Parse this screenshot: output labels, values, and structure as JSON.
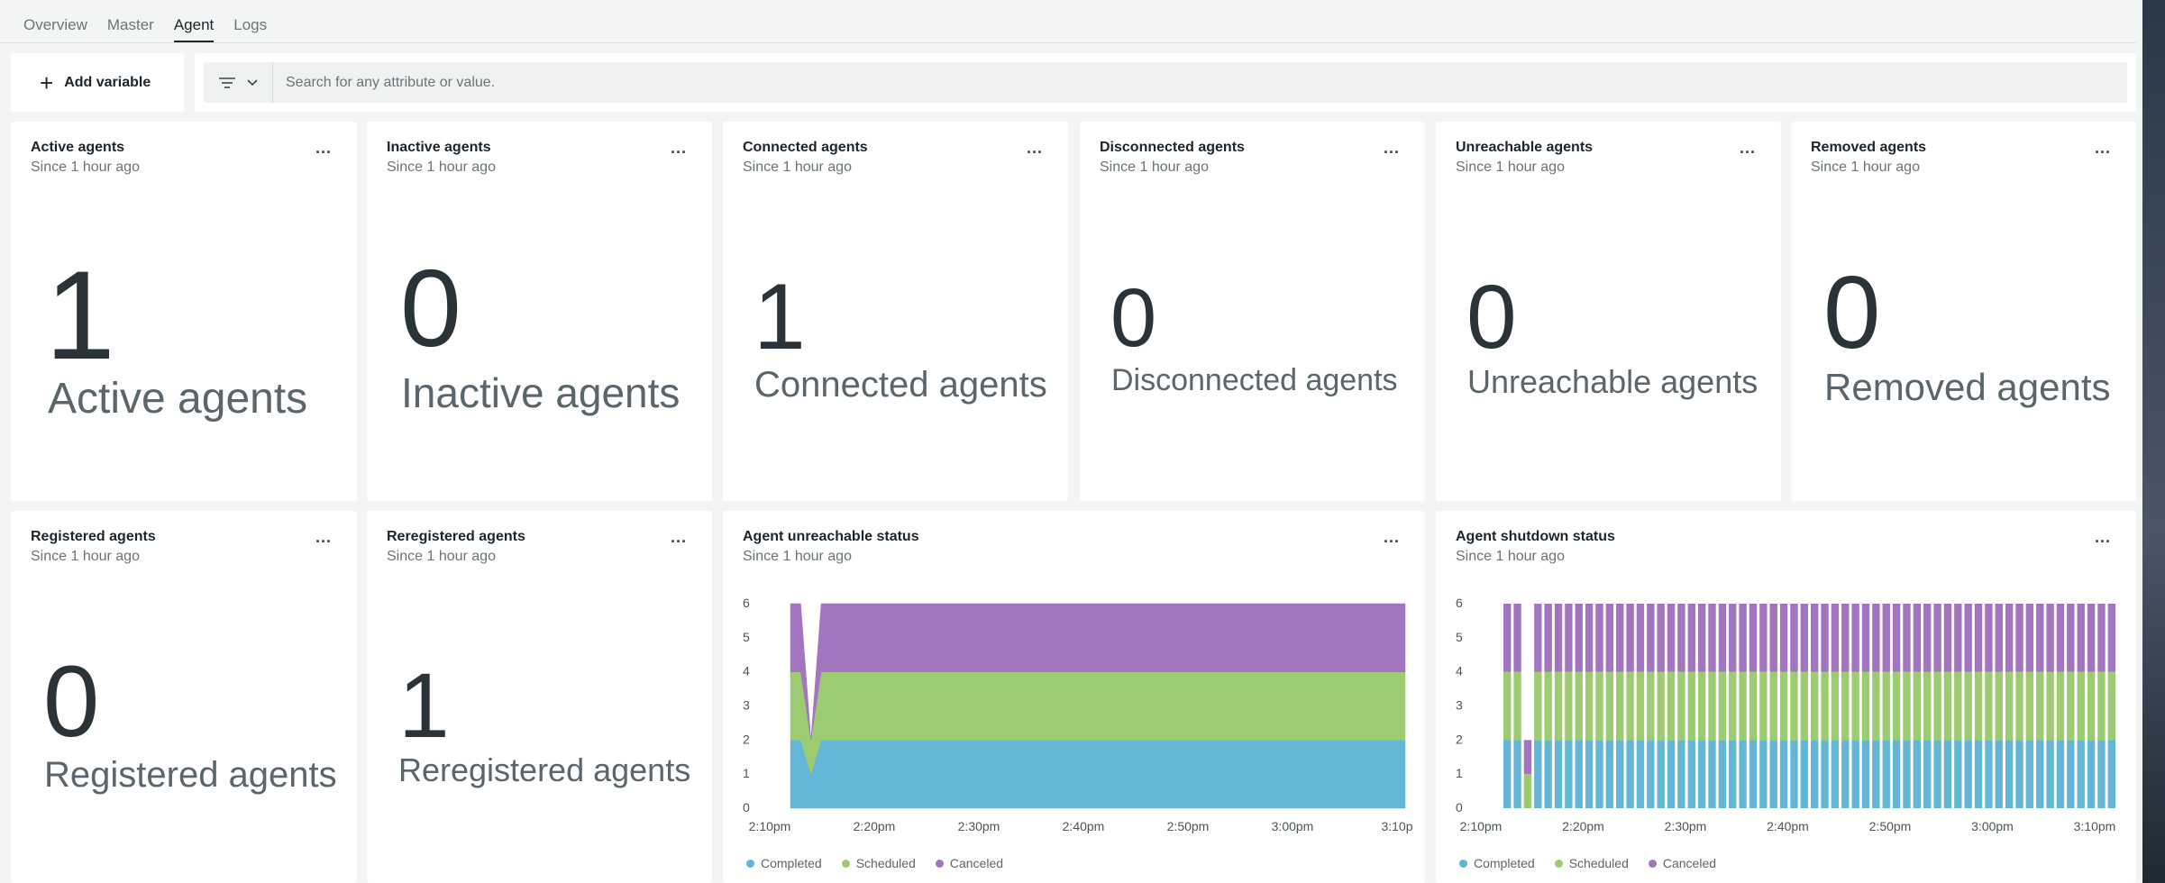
{
  "tabs": [
    {
      "label": "Overview",
      "active": false
    },
    {
      "label": "Master",
      "active": false
    },
    {
      "label": "Agent",
      "active": true
    },
    {
      "label": "Logs",
      "active": false
    }
  ],
  "toolbar": {
    "add_variable_label": "Add variable",
    "search_placeholder": "Search for any attribute or value."
  },
  "billboards": [
    {
      "title": "Active agents",
      "subtitle": "Since 1 hour ago",
      "value": "1",
      "label": "Active agents"
    },
    {
      "title": "Inactive agents",
      "subtitle": "Since 1 hour ago",
      "value": "0",
      "label": "Inactive agents"
    },
    {
      "title": "Connected agents",
      "subtitle": "Since 1 hour ago",
      "value": "1",
      "label": "Connected agents"
    },
    {
      "title": "Disconnected agents",
      "subtitle": "Since 1 hour ago",
      "value": "0",
      "label": "Disconnected agents"
    },
    {
      "title": "Unreachable agents",
      "subtitle": "Since 1 hour ago",
      "value": "0",
      "label": "Unreachable agents"
    },
    {
      "title": "Removed agents",
      "subtitle": "Since 1 hour ago",
      "value": "0",
      "label": "Removed agents"
    },
    {
      "title": "Registered agents",
      "subtitle": "Since 1 hour ago",
      "value": "0",
      "label": "Registered agents"
    },
    {
      "title": "Reregistered agents",
      "subtitle": "Since 1 hour ago",
      "value": "1",
      "label": "Reregistered agents"
    }
  ],
  "colors": {
    "completed": "#63b6d5",
    "scheduled": "#9dcb72",
    "canceled": "#a374bf"
  },
  "chart_data": [
    {
      "type": "area",
      "title": "Agent unreachable status",
      "subtitle": "Since 1 hour ago",
      "x_ticks": [
        "2:10pm",
        "2:20pm",
        "2:30pm",
        "2:40pm",
        "2:50pm",
        "3:00pm",
        "3:10p"
      ],
      "y_ticks": [
        0,
        1,
        2,
        3,
        4,
        5,
        6
      ],
      "ylim": [
        0,
        6
      ],
      "x_minutes": [
        0,
        1,
        2,
        3,
        4,
        60
      ],
      "series": [
        {
          "name": "Completed",
          "values": [
            2,
            2,
            1,
            2,
            2,
            2
          ]
        },
        {
          "name": "Scheduled",
          "values": [
            2,
            2,
            1,
            2,
            2,
            2
          ]
        },
        {
          "name": "Canceled",
          "values": [
            2,
            2,
            0,
            2,
            2,
            2
          ]
        }
      ],
      "legend": [
        "Completed",
        "Scheduled",
        "Canceled"
      ]
    },
    {
      "type": "bar",
      "stacked": true,
      "title": "Agent shutdown status",
      "subtitle": "Since 1 hour ago",
      "x_ticks": [
        "2:10pm",
        "2:20pm",
        "2:30pm",
        "2:40pm",
        "2:50pm",
        "3:00pm",
        "3:10pm"
      ],
      "y_ticks": [
        0,
        1,
        2,
        3,
        4,
        5,
        6
      ],
      "ylim": [
        0,
        6
      ],
      "bar_count": 60,
      "series": [
        {
          "name": "Completed",
          "default": 2,
          "overrides": {
            "2": 0
          }
        },
        {
          "name": "Scheduled",
          "default": 2,
          "overrides": {
            "2": 1
          }
        },
        {
          "name": "Canceled",
          "default": 2,
          "overrides": {
            "2": 1
          }
        }
      ],
      "legend": [
        "Completed",
        "Scheduled",
        "Canceled"
      ]
    }
  ]
}
